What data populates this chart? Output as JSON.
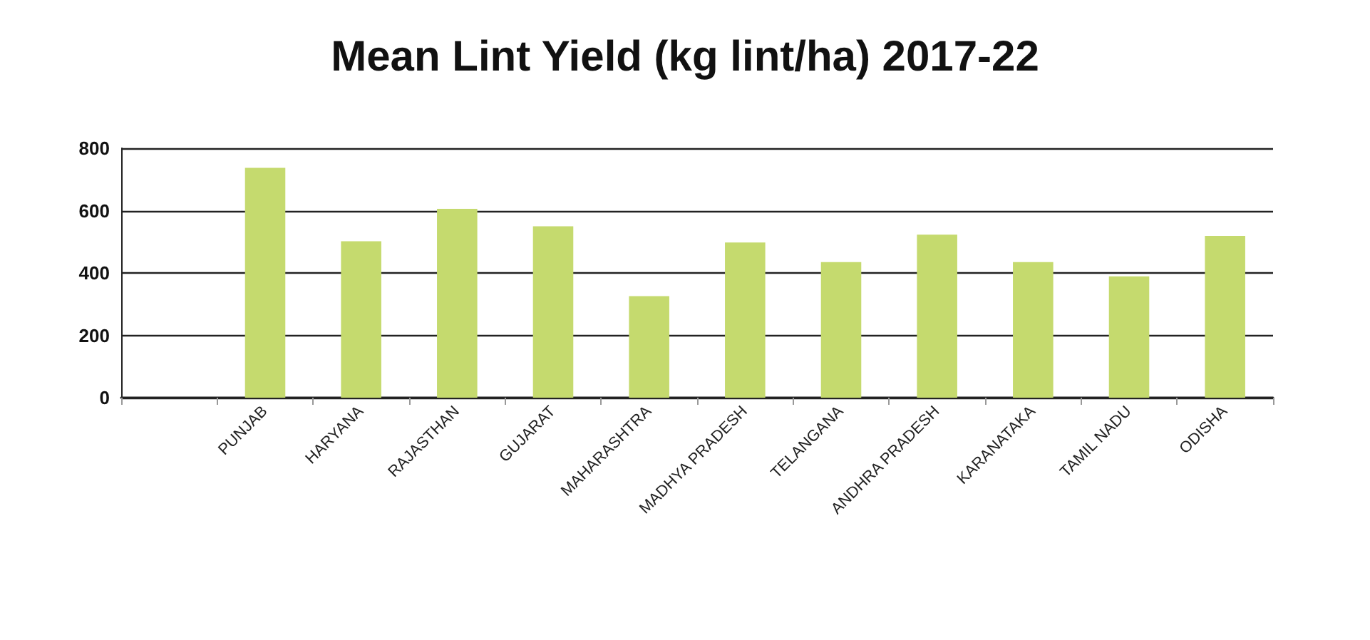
{
  "chart_data": {
    "type": "bar",
    "title": "Mean Lint Yield (kg lint/ha) 2017-22",
    "categories": [
      null,
      "PUNJAB",
      "HARYANA",
      "RAJASTHAN",
      "GUJARAT",
      "MAHARASHTRA",
      "MADHYA PRADESH",
      "TELANGANA",
      "ANDHRA PRADESH",
      "KARANATAKA",
      "TAMIL NADU",
      "ODISHA"
    ],
    "values": [
      null,
      737,
      502,
      606,
      550,
      326,
      498,
      435,
      523,
      435,
      389,
      519
    ],
    "color": "#c5da6e",
    "ylim": [
      0,
      800
    ],
    "yticks": [
      0,
      200,
      400,
      600,
      800
    ],
    "grid": "y"
  }
}
